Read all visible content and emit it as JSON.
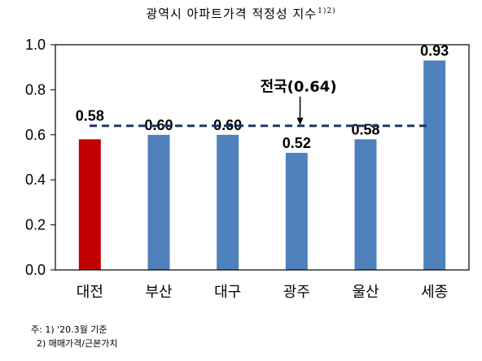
{
  "title": "광역시 아파트가격 적정성 지수",
  "title_superscript": "1)2)",
  "chart_data": {
    "type": "bar",
    "categories": [
      "대전",
      "부산",
      "대구",
      "광주",
      "울산",
      "세종"
    ],
    "values": [
      0.58,
      0.6,
      0.6,
      0.52,
      0.58,
      0.93
    ],
    "data_labels": [
      "0.58",
      "0.60",
      "0.60",
      "0.52",
      "0.58",
      "0.93"
    ],
    "highlight_category": "대전",
    "colors": {
      "bar": "#4f81bd",
      "highlight": "#c00000",
      "reference_line": "#1f3864"
    },
    "ylim": [
      0,
      1.0
    ],
    "yticks": [
      0.0,
      0.2,
      0.4,
      0.6,
      0.8,
      1.0
    ],
    "ytick_labels": [
      "0.0",
      "0.2",
      "0.4",
      "0.6",
      "0.8",
      "1.0"
    ],
    "reference_line": {
      "value": 0.64,
      "label": "전국(0.64)",
      "style": "dashed"
    },
    "grid": false,
    "xlabel": "",
    "ylabel": ""
  },
  "notes": [
    "주: 1) '20.3월 기준",
    "  2) 매매가격/근본가치"
  ]
}
